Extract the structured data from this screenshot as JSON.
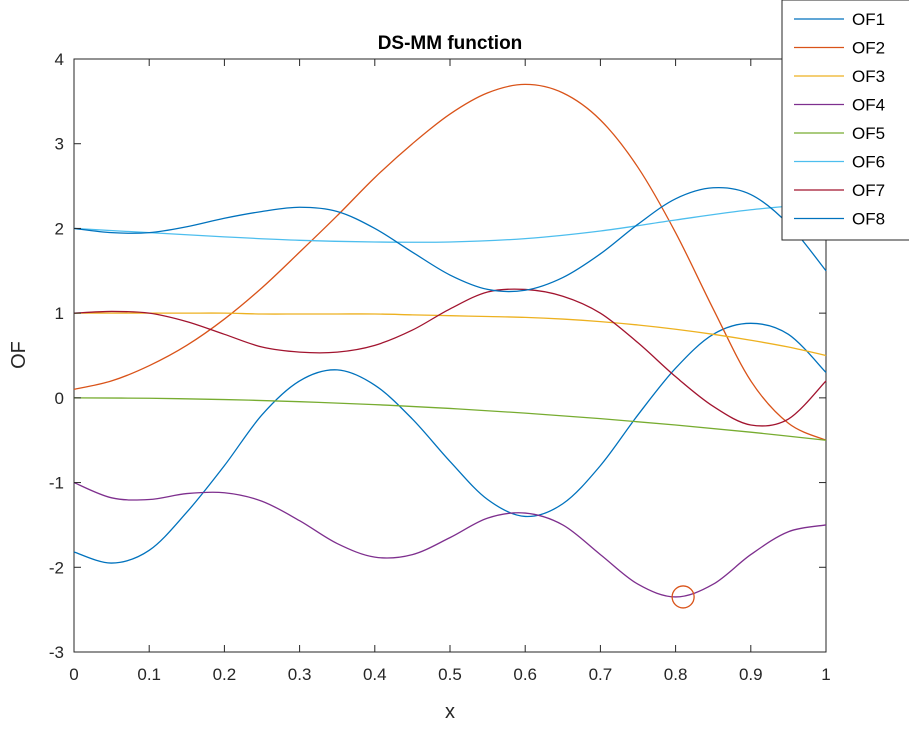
{
  "chart_data": {
    "type": "line",
    "title": "DS-MM function",
    "xlabel": "x",
    "ylabel": "OF",
    "xlim": [
      0,
      1
    ],
    "ylim": [
      -3,
      4
    ],
    "xticks": [
      "0",
      "0.1",
      "0.2",
      "0.3",
      "0.4",
      "0.5",
      "0.6",
      "0.7",
      "0.8",
      "0.9",
      "1"
    ],
    "yticks": [
      "-3",
      "-2",
      "-1",
      "0",
      "1",
      "2",
      "3",
      "4"
    ],
    "legend_position": "top-right",
    "grid": false,
    "series": [
      {
        "name": "OF1",
        "color": "#0072BD",
        "x": [
          0,
          0.05,
          0.1,
          0.15,
          0.2,
          0.25,
          0.3,
          0.35,
          0.4,
          0.45,
          0.5,
          0.55,
          0.6,
          0.65,
          0.7,
          0.75,
          0.8,
          0.85,
          0.9,
          0.95,
          1
        ],
        "y": [
          -1.82,
          -1.95,
          -1.8,
          -1.35,
          -0.8,
          -0.2,
          0.2,
          0.33,
          0.15,
          -0.25,
          -0.75,
          -1.2,
          -1.4,
          -1.25,
          -0.8,
          -0.2,
          0.35,
          0.75,
          0.88,
          0.75,
          0.3
        ]
      },
      {
        "name": "OF2",
        "color": "#D95319",
        "x": [
          0,
          0.05,
          0.1,
          0.15,
          0.2,
          0.25,
          0.3,
          0.35,
          0.4,
          0.45,
          0.5,
          0.55,
          0.6,
          0.65,
          0.7,
          0.75,
          0.8,
          0.85,
          0.9,
          0.95,
          1
        ],
        "y": [
          0.1,
          0.2,
          0.38,
          0.62,
          0.93,
          1.3,
          1.72,
          2.15,
          2.6,
          3.0,
          3.35,
          3.6,
          3.7,
          3.6,
          3.28,
          2.72,
          1.95,
          1.05,
          0.2,
          -0.3,
          -0.5
        ]
      },
      {
        "name": "OF3",
        "color": "#EDB120",
        "x": [
          0,
          0.05,
          0.1,
          0.15,
          0.2,
          0.25,
          0.3,
          0.35,
          0.4,
          0.45,
          0.5,
          0.55,
          0.6,
          0.65,
          0.7,
          0.75,
          0.8,
          0.85,
          0.9,
          0.95,
          1
        ],
        "y": [
          1.0,
          1.0,
          1.0,
          1.0,
          1.0,
          0.99,
          0.99,
          0.99,
          0.99,
          0.98,
          0.97,
          0.96,
          0.95,
          0.93,
          0.9,
          0.86,
          0.81,
          0.75,
          0.68,
          0.6,
          0.5
        ]
      },
      {
        "name": "OF4",
        "color": "#7E2F8E",
        "x": [
          0,
          0.05,
          0.1,
          0.15,
          0.2,
          0.25,
          0.3,
          0.35,
          0.4,
          0.45,
          0.5,
          0.55,
          0.6,
          0.65,
          0.7,
          0.75,
          0.8,
          0.85,
          0.9,
          0.95,
          1
        ],
        "y": [
          -1.0,
          -1.18,
          -1.2,
          -1.13,
          -1.12,
          -1.22,
          -1.45,
          -1.72,
          -1.88,
          -1.85,
          -1.65,
          -1.42,
          -1.36,
          -1.5,
          -1.85,
          -2.2,
          -2.35,
          -2.2,
          -1.85,
          -1.58,
          -1.5
        ]
      },
      {
        "name": "OF5",
        "color": "#77AC30",
        "x": [
          0,
          0.1,
          0.2,
          0.3,
          0.4,
          0.5,
          0.6,
          0.7,
          0.8,
          0.9,
          1
        ],
        "y": [
          0.0,
          -0.005,
          -0.02,
          -0.045,
          -0.08,
          -0.125,
          -0.18,
          -0.245,
          -0.32,
          -0.405,
          -0.5
        ]
      },
      {
        "name": "OF6",
        "color": "#4DBEEE",
        "x": [
          0,
          0.1,
          0.2,
          0.3,
          0.4,
          0.5,
          0.6,
          0.7,
          0.8,
          0.9,
          1
        ],
        "y": [
          2.0,
          1.95,
          1.9,
          1.86,
          1.84,
          1.84,
          1.88,
          1.97,
          2.1,
          2.22,
          2.3
        ]
      },
      {
        "name": "OF7",
        "color": "#A2142F",
        "x": [
          0,
          0.05,
          0.1,
          0.15,
          0.2,
          0.25,
          0.3,
          0.35,
          0.4,
          0.45,
          0.5,
          0.55,
          0.6,
          0.65,
          0.7,
          0.75,
          0.8,
          0.85,
          0.9,
          0.95,
          1
        ],
        "y": [
          1.0,
          1.02,
          1.0,
          0.9,
          0.75,
          0.6,
          0.54,
          0.54,
          0.62,
          0.8,
          1.05,
          1.25,
          1.28,
          1.2,
          1.0,
          0.65,
          0.25,
          -0.1,
          -0.32,
          -0.25,
          0.2
        ]
      },
      {
        "name": "OF8",
        "color": "#0072BD",
        "x": [
          0,
          0.05,
          0.1,
          0.15,
          0.2,
          0.25,
          0.3,
          0.35,
          0.4,
          0.45,
          0.5,
          0.55,
          0.6,
          0.65,
          0.7,
          0.75,
          0.8,
          0.85,
          0.9,
          0.95,
          1
        ],
        "y": [
          2.0,
          1.95,
          1.95,
          2.02,
          2.12,
          2.2,
          2.25,
          2.2,
          2.0,
          1.72,
          1.45,
          1.28,
          1.27,
          1.42,
          1.7,
          2.05,
          2.35,
          2.48,
          2.4,
          2.05,
          1.5
        ]
      }
    ],
    "annotations": [
      {
        "type": "circle-marker",
        "x": 0.81,
        "y": -2.35,
        "color": "#D95319"
      }
    ]
  }
}
